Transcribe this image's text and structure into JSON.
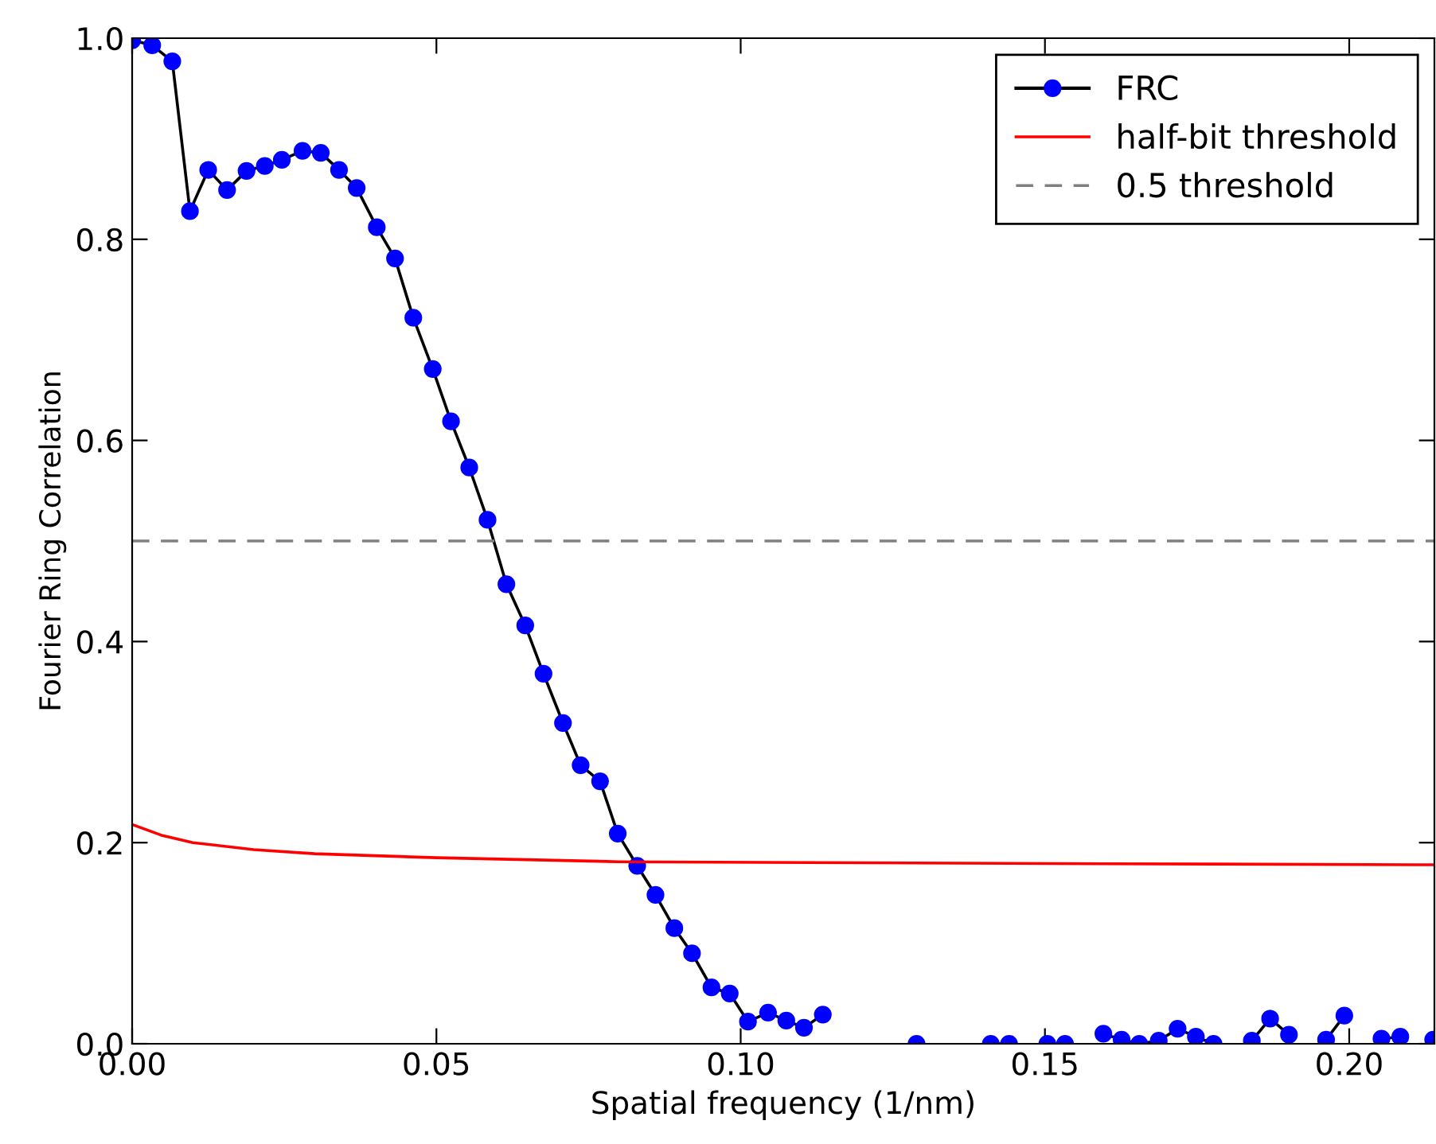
{
  "chart_data": {
    "type": "line",
    "xlabel": "Spatial frequency (1/nm)",
    "ylabel": "Fourier Ring Correlation",
    "xlim": [
      0,
      0.214
    ],
    "ylim": [
      0,
      1.0
    ],
    "xticks": [
      {
        "value": 0,
        "label": "0.00"
      },
      0.05,
      {
        "value": 0.1,
        "label": "0.10"
      },
      0.15,
      {
        "value": 0.2,
        "label": "0.20"
      }
    ],
    "yticks": [
      {
        "value": 0,
        "label": "0.0"
      },
      0.2,
      0.4,
      0.6,
      0.8,
      {
        "value": 1,
        "label": "1.0"
      }
    ],
    "grid": false,
    "legend": "top right",
    "series": [
      {
        "name": "FRC",
        "color": "#0000ff",
        "marker": "circle",
        "line_style": "solid",
        "x": [
          0,
          0.0033,
          0.0066,
          0.0095,
          0.0125,
          0.0156,
          0.0188,
          0.0218,
          0.0246,
          0.028,
          0.031,
          0.034,
          0.0369,
          0.0402,
          0.0432,
          0.0462,
          0.0494,
          0.0524,
          0.0554,
          0.0584,
          0.0615,
          0.0646,
          0.0676,
          0.0708,
          0.0737,
          0.0769,
          0.0798,
          0.083,
          0.086,
          0.0891,
          0.092,
          0.0952,
          0.0982,
          0.1012,
          0.1045,
          0.1075,
          0.1104,
          0.1135,
          0.1166,
          0.1289,
          0.135,
          0.1411,
          0.1441,
          0.147,
          0.1504,
          0.1533,
          0.1565,
          0.1596,
          0.1626,
          0.1655,
          0.1687,
          0.1718,
          0.1748,
          0.1777,
          0.181,
          0.184,
          0.187,
          0.1901,
          0.1931,
          0.1962,
          0.1992,
          0.2023,
          0.2053,
          0.2084,
          0.2115,
          0.2138
        ],
        "values": [
          0.998,
          0.993,
          0.977,
          0.828,
          0.869,
          0.849,
          0.868,
          0.873,
          0.879,
          0.888,
          0.886,
          0.869,
          0.851,
          0.812,
          0.781,
          0.722,
          0.671,
          0.619,
          0.573,
          0.521,
          0.457,
          0.416,
          0.368,
          0.319,
          0.277,
          0.261,
          0.209,
          0.177,
          0.148,
          0.115,
          0.09,
          0.056,
          0.05,
          0.022,
          0.031,
          0.023,
          0.016,
          0.029,
          null,
          0.0,
          null,
          0.0,
          0.0,
          null,
          0.0,
          0.0,
          null,
          0.01,
          0.004,
          0.0,
          0.003,
          0.015,
          0.007,
          0.0,
          null,
          0.003,
          0.025,
          0.009,
          null,
          0.004,
          0.028,
          null,
          0.005,
          0.007,
          null,
          0.004
        ]
      },
      {
        "name": "half-bit threshold",
        "color": "#ff0000",
        "marker": "none",
        "line_style": "solid",
        "x": [
          0,
          0.005,
          0.01,
          0.02,
          0.03,
          0.05,
          0.08,
          0.12,
          0.16,
          0.214
        ],
        "values": [
          0.218,
          0.207,
          0.2,
          0.193,
          0.189,
          0.185,
          0.181,
          0.18,
          0.179,
          0.178
        ]
      }
    ],
    "ref_lines": [
      {
        "axis": "y",
        "value": 0.5,
        "label": "0.5 threshold",
        "color": "#808080",
        "line_style": "dashed"
      }
    ]
  }
}
